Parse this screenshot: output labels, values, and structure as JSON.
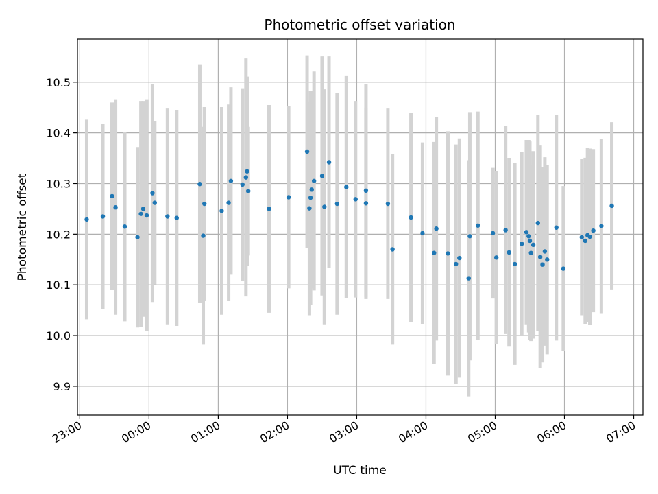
{
  "chart_data": {
    "type": "scatter",
    "title": "Photometric offset variation",
    "xlabel": "UTC time",
    "ylabel": "Photometric offset",
    "grid": true,
    "colors": {
      "points": "#1f77b4",
      "errorbars": "#d3d3d3",
      "grid": "#b0b0b0"
    },
    "xlim": [
      "22:58",
      "07:08"
    ],
    "ylim": [
      9.843,
      10.585
    ],
    "x_ticks": [
      "23:00",
      "00:00",
      "01:00",
      "02:00",
      "03:00",
      "04:00",
      "05:00",
      "06:00",
      "07:00"
    ],
    "y_ticks": [
      "9.9",
      "10.0",
      "10.1",
      "10.2",
      "10.3",
      "10.4",
      "10.5"
    ],
    "series": [
      {
        "x": [
          "23:06",
          "23:20",
          "23:28",
          "23:31",
          "23:39",
          "23:50",
          "23:53",
          "23:55",
          "23:58",
          "00:03",
          "00:05",
          "00:16",
          "00:24",
          "00:44",
          "00:47",
          "00:48",
          "01:03",
          "01:09",
          "01:11",
          "01:21",
          "01:24",
          "01:25",
          "01:26",
          "01:44",
          "02:01",
          "02:17",
          "02:19",
          "02:20",
          "02:21",
          "02:23",
          "02:30",
          "02:32",
          "02:36",
          "02:43",
          "02:51",
          "02:59",
          "03:08",
          "03:08",
          "03:27",
          "03:31",
          "03:47",
          "03:57",
          "04:07",
          "04:09",
          "04:19",
          "04:26",
          "04:29",
          "04:37",
          "04:38",
          "04:45",
          "04:58",
          "05:01",
          "05:09",
          "05:12",
          "05:17",
          "05:23",
          "05:27",
          "05:29",
          "05:30",
          "05:31",
          "05:33",
          "05:37",
          "05:39",
          "05:41",
          "05:43",
          "05:45",
          "05:53",
          "05:59",
          "06:15",
          "06:18",
          "06:20",
          "06:22",
          "06:25",
          "06:32",
          "06:41"
        ],
        "y": [
          10.229,
          10.235,
          10.275,
          10.253,
          10.215,
          10.194,
          10.24,
          10.25,
          10.237,
          10.281,
          10.262,
          10.235,
          10.232,
          10.299,
          10.197,
          10.26,
          10.246,
          10.262,
          10.305,
          10.298,
          10.312,
          10.324,
          10.285,
          10.25,
          10.273,
          10.363,
          10.251,
          10.272,
          10.288,
          10.305,
          10.315,
          10.254,
          10.342,
          10.26,
          10.293,
          10.269,
          10.261,
          10.286,
          10.26,
          10.17,
          10.233,
          10.202,
          10.163,
          10.211,
          10.162,
          10.141,
          10.153,
          10.113,
          10.196,
          10.217,
          10.202,
          10.154,
          10.208,
          10.164,
          10.141,
          10.181,
          10.204,
          10.196,
          10.187,
          10.163,
          10.179,
          10.222,
          10.155,
          10.14,
          10.166,
          10.15,
          10.213,
          10.132,
          10.194,
          10.187,
          10.198,
          10.195,
          10.207,
          10.216,
          10.256
        ],
        "yerr": [
          0.197,
          0.183,
          0.185,
          0.212,
          0.187,
          0.178,
          0.223,
          0.213,
          0.228,
          0.215,
          0.161,
          0.213,
          0.213,
          0.235,
          0.215,
          0.191,
          0.205,
          0.194,
          0.185,
          0.19,
          0.235,
          0.187,
          0.127,
          0.205,
          0.18,
          0.19,
          0.211,
          0.211,
          0.195,
          0.216,
          0.236,
          0.232,
          0.209,
          0.219,
          0.219,
          0.194,
          0.189,
          0.21,
          0.188,
          0.188,
          0.207,
          0.179,
          0.219,
          0.221,
          0.241,
          0.236,
          0.236,
          0.233,
          0.245,
          0.225,
          0.129,
          0.171,
          0.205,
          0.186,
          0.199,
          0.181,
          0.182,
          0.19,
          0.196,
          0.174,
          0.185,
          0.213,
          0.22,
          0.193,
          0.186,
          0.187,
          0.223,
          0.163,
          0.154,
          0.164,
          0.172,
          0.174,
          0.161,
          0.172,
          0.165
        ]
      }
    ]
  }
}
